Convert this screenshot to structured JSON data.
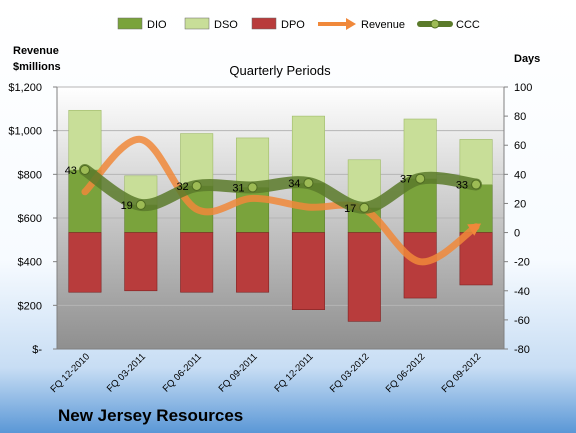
{
  "company": "New Jersey Resources",
  "chart_data": {
    "type": "bar",
    "title": "Quarterly Periods",
    "categories": [
      "FQ 12-2010",
      "FQ 03-2011",
      "FQ 06-2011",
      "FQ 09-2011",
      "FQ 12-2011",
      "FQ 03-2012",
      "FQ 06-2012",
      "FQ 09-2012"
    ],
    "left_axis": {
      "label_line1": "Revenue",
      "label_line2": "$millions",
      "ylim": [
        0,
        1200
      ],
      "ticks": [
        0,
        200,
        400,
        600,
        800,
        1000,
        1200
      ],
      "tick_labels": [
        "$-",
        "$200",
        "$400",
        "$600",
        "$800",
        "$1,000",
        "$1,200"
      ]
    },
    "right_axis": {
      "label": "Days",
      "ylim": [
        -80,
        100
      ],
      "ticks": [
        -80,
        -60,
        -40,
        -20,
        0,
        20,
        40,
        60,
        80,
        100
      ],
      "tick_labels": [
        "-80",
        "-60",
        "-40",
        "-20",
        "0",
        "20",
        "40",
        "60",
        "80",
        "100"
      ]
    },
    "legend": {
      "placement": "top"
    },
    "grid": true,
    "series": [
      {
        "name": "DIO",
        "kind": "bar",
        "axis": "right",
        "color": "#7aa33c",
        "values": [
          43,
          19,
          32,
          31,
          34,
          17,
          37,
          33
        ]
      },
      {
        "name": "DSO",
        "kind": "bar",
        "axis": "right",
        "color": "#c8de98",
        "values": [
          41,
          20,
          36,
          34,
          46,
          33,
          41,
          31
        ]
      },
      {
        "name": "DPO",
        "kind": "bar",
        "axis": "right",
        "color": "#b83c3c",
        "values": [
          -41,
          -40,
          -41,
          -41,
          -53,
          -61,
          -45,
          -36
        ]
      },
      {
        "name": "Revenue",
        "kind": "line",
        "axis": "left",
        "color": "#f0883a",
        "values": [
          720,
          960,
          640,
          690,
          650,
          640,
          400,
          560
        ]
      },
      {
        "name": "CCC",
        "kind": "line",
        "axis": "right",
        "color": "#5a7a2a",
        "values": [
          43,
          19,
          32,
          31,
          34,
          17,
          37,
          33
        ]
      }
    ]
  }
}
